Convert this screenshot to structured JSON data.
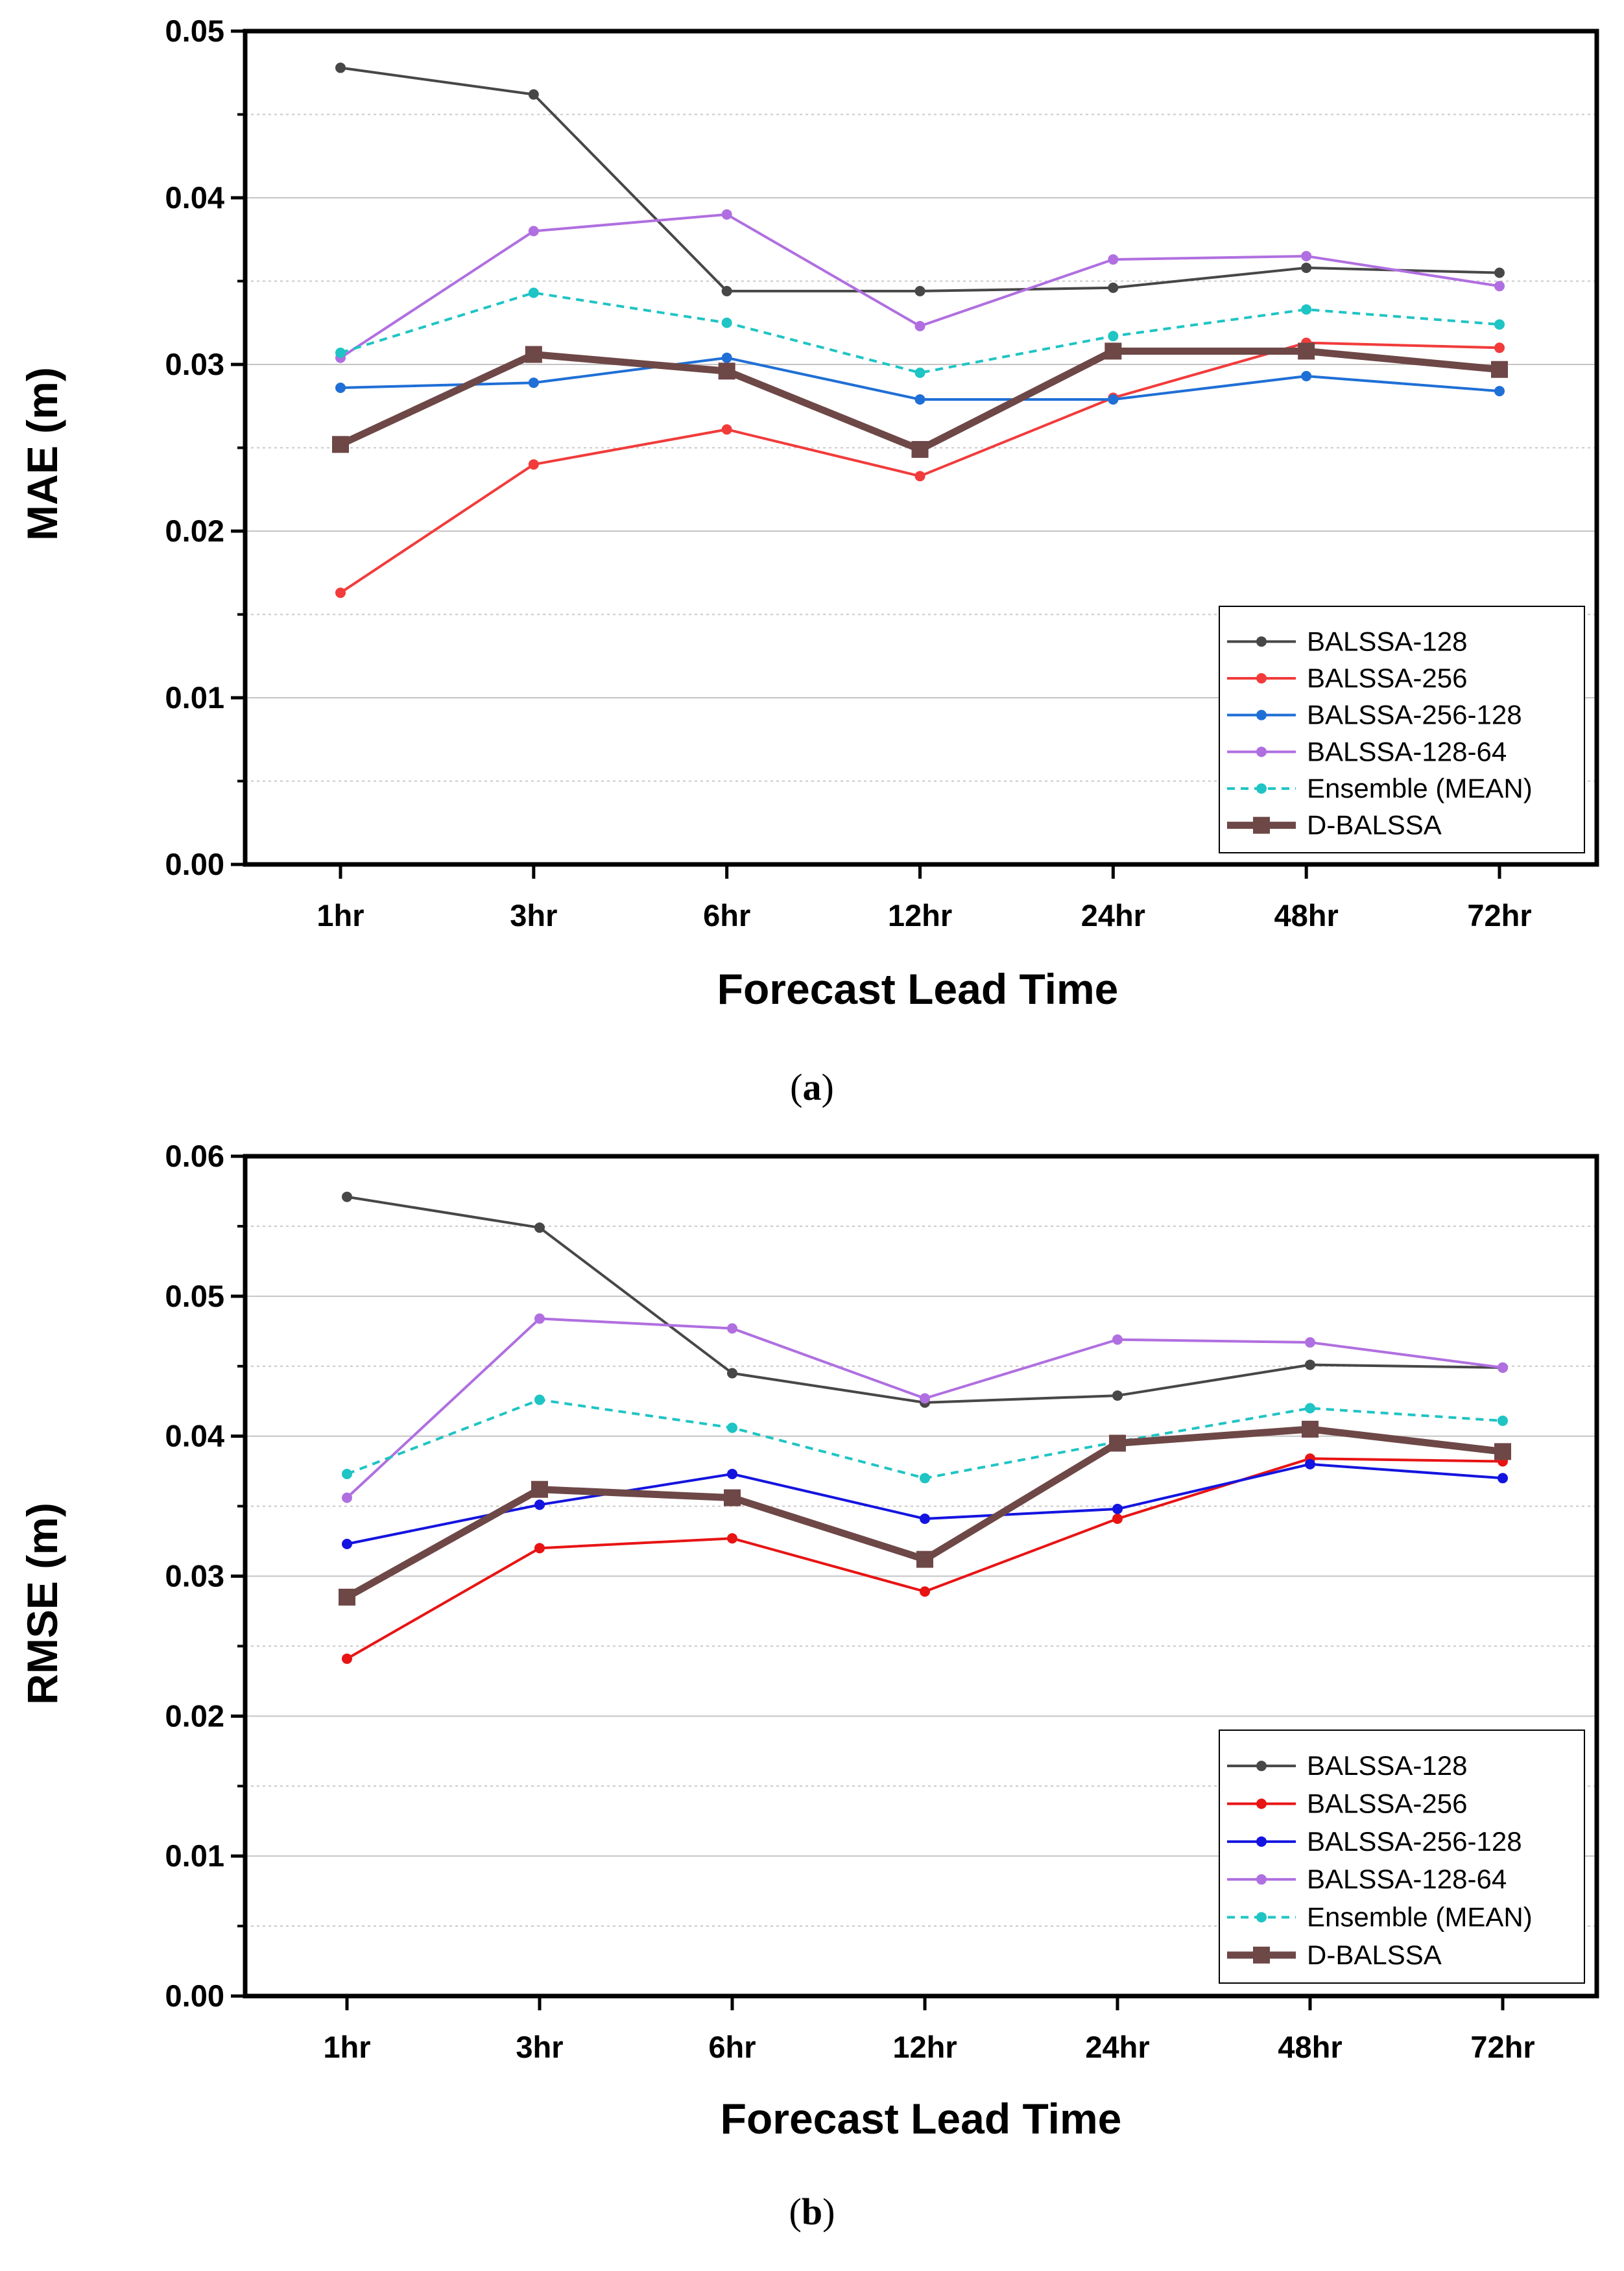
{
  "chart_data": [
    {
      "type": "line",
      "panel_label": "a",
      "xlabel": "Forecast Lead Time",
      "ylabel": "MAE (m)",
      "categories": [
        "1hr",
        "3hr",
        "6hr",
        "12hr",
        "24hr",
        "48hr",
        "72hr"
      ],
      "ylim": [
        0,
        0.05
      ],
      "yticks": [
        "0.00",
        "0.01",
        "0.02",
        "0.03",
        "0.04",
        "0.05"
      ],
      "grid": true,
      "legend_position": "bottom-right",
      "series": [
        {
          "name": "BALSSA-128",
          "color": "#474747",
          "style": "solid-dot",
          "values": [
            0.0478,
            0.0462,
            0.0344,
            0.0344,
            0.0346,
            0.0358,
            0.0355
          ]
        },
        {
          "name": "BALSSA-256",
          "color": "#f23b3b",
          "style": "solid-dot",
          "values": [
            0.0163,
            0.024,
            0.0261,
            0.0233,
            0.028,
            0.0313,
            0.031
          ]
        },
        {
          "name": "BALSSA-256-128",
          "color": "#1f6fd6",
          "style": "solid-dot",
          "values": [
            0.0286,
            0.0289,
            0.0304,
            0.0279,
            0.0279,
            0.0293,
            0.0284
          ]
        },
        {
          "name": "BALSSA-128-64",
          "color": "#b06fe0",
          "style": "solid-dot",
          "values": [
            0.0304,
            0.038,
            0.039,
            0.0323,
            0.0363,
            0.0365,
            0.0347
          ]
        },
        {
          "name": "Ensemble (MEAN)",
          "color": "#1fc4c4",
          "style": "dashed-dot",
          "values": [
            0.0307,
            0.0343,
            0.0325,
            0.0295,
            0.0317,
            0.0333,
            0.0324
          ]
        },
        {
          "name": "D-BALSSA",
          "color": "#6e4747",
          "style": "thick-square",
          "values": [
            0.0252,
            0.0306,
            0.0296,
            0.0249,
            0.0308,
            0.0308,
            0.0297
          ]
        }
      ]
    },
    {
      "type": "line",
      "panel_label": "b",
      "xlabel": "Forecast Lead Time",
      "ylabel": "RMSE (m)",
      "categories": [
        "1hr",
        "3hr",
        "6hr",
        "12hr",
        "24hr",
        "48hr",
        "72hr"
      ],
      "ylim": [
        0,
        0.06
      ],
      "yticks": [
        "0.00",
        "0.01",
        "0.02",
        "0.03",
        "0.04",
        "0.05",
        "0.06"
      ],
      "grid": true,
      "legend_position": "bottom-right",
      "series": [
        {
          "name": "BALSSA-128",
          "color": "#474747",
          "style": "solid-dot",
          "values": [
            0.0571,
            0.0549,
            0.0445,
            0.0424,
            0.0429,
            0.0451,
            0.0449
          ]
        },
        {
          "name": "BALSSA-256",
          "color": "#e81414",
          "style": "solid-dot",
          "values": [
            0.0241,
            0.032,
            0.0327,
            0.0289,
            0.0341,
            0.0384,
            0.0382
          ]
        },
        {
          "name": "BALSSA-256-128",
          "color": "#1414e0",
          "style": "solid-dot",
          "values": [
            0.0323,
            0.0351,
            0.0373,
            0.0341,
            0.0348,
            0.038,
            0.037
          ]
        },
        {
          "name": "BALSSA-128-64",
          "color": "#b06fe0",
          "style": "solid-dot",
          "values": [
            0.0356,
            0.0484,
            0.0477,
            0.0427,
            0.0469,
            0.0467,
            0.0449
          ]
        },
        {
          "name": "Ensemble (MEAN)",
          "color": "#1fc4c4",
          "style": "dashed-dot",
          "values": [
            0.0373,
            0.0426,
            0.0406,
            0.037,
            0.0396,
            0.042,
            0.0411
          ]
        },
        {
          "name": "D-BALSSA",
          "color": "#6e4747",
          "style": "thick-square",
          "values": [
            0.0285,
            0.0362,
            0.0356,
            0.0312,
            0.0395,
            0.0405,
            0.0389
          ]
        }
      ]
    }
  ]
}
